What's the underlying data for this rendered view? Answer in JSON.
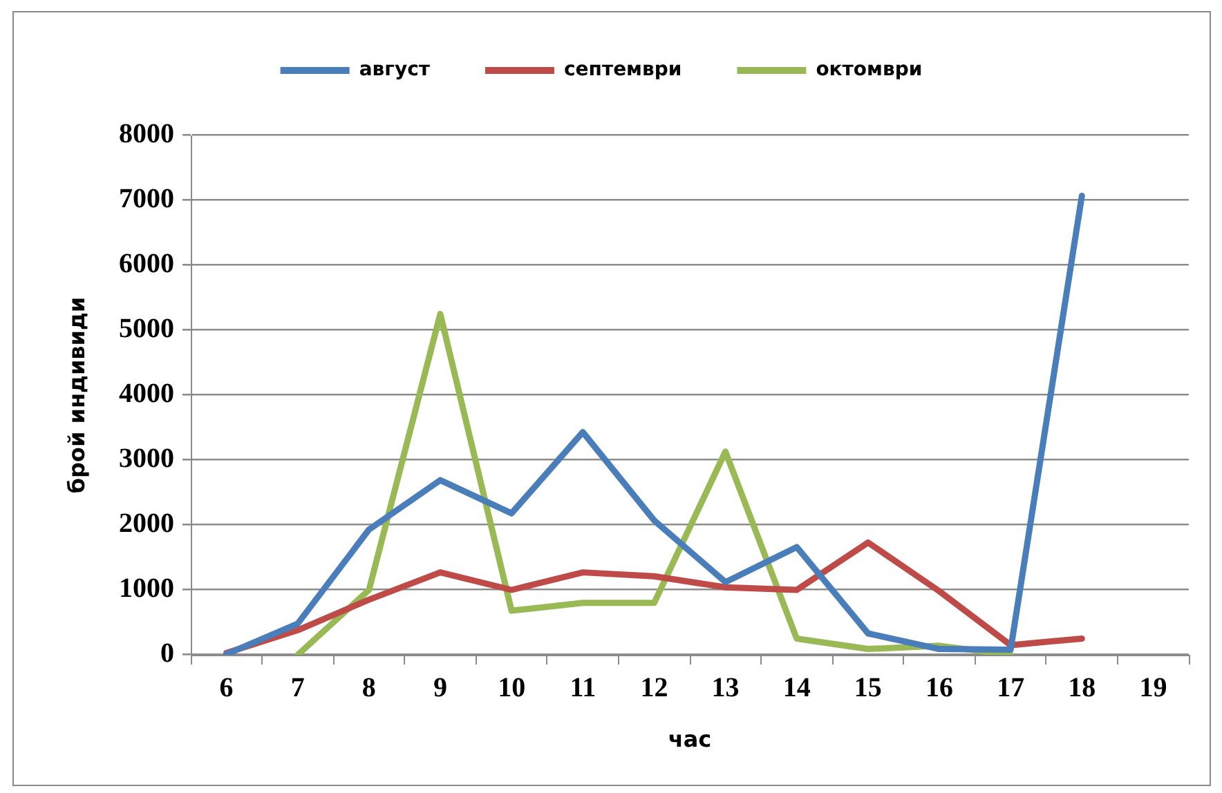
{
  "chart_data": {
    "type": "line",
    "categories": [
      "6",
      "7",
      "8",
      "9",
      "10",
      "11",
      "12",
      "13",
      "14",
      "15",
      "16",
      "17",
      "18",
      "19"
    ],
    "series": [
      {
        "name": "август",
        "color": "#4a7ebb",
        "values": [
          10,
          480,
          1930,
          2690,
          2180,
          3430,
          2070,
          1120,
          1660,
          330,
          90,
          80,
          7070,
          null
        ]
      },
      {
        "name": "септември",
        "color": "#be4b48",
        "values": [
          30,
          380,
          850,
          1270,
          1000,
          1270,
          1210,
          1040,
          1000,
          1730,
          980,
          150,
          250,
          null
        ]
      },
      {
        "name": "октомври",
        "color": "#98b954",
        "values": [
          null,
          0,
          1000,
          5250,
          680,
          800,
          800,
          3130,
          250,
          90,
          140,
          0,
          null,
          null
        ]
      }
    ],
    "xlabel": "час",
    "ylabel": "брой индивиди",
    "ylim": [
      0,
      8000
    ],
    "yticks": [
      0,
      1000,
      2000,
      3000,
      4000,
      5000,
      6000,
      7000,
      8000
    ],
    "grid": "y",
    "legend": "top",
    "marker": "none",
    "line_style": "solid"
  }
}
